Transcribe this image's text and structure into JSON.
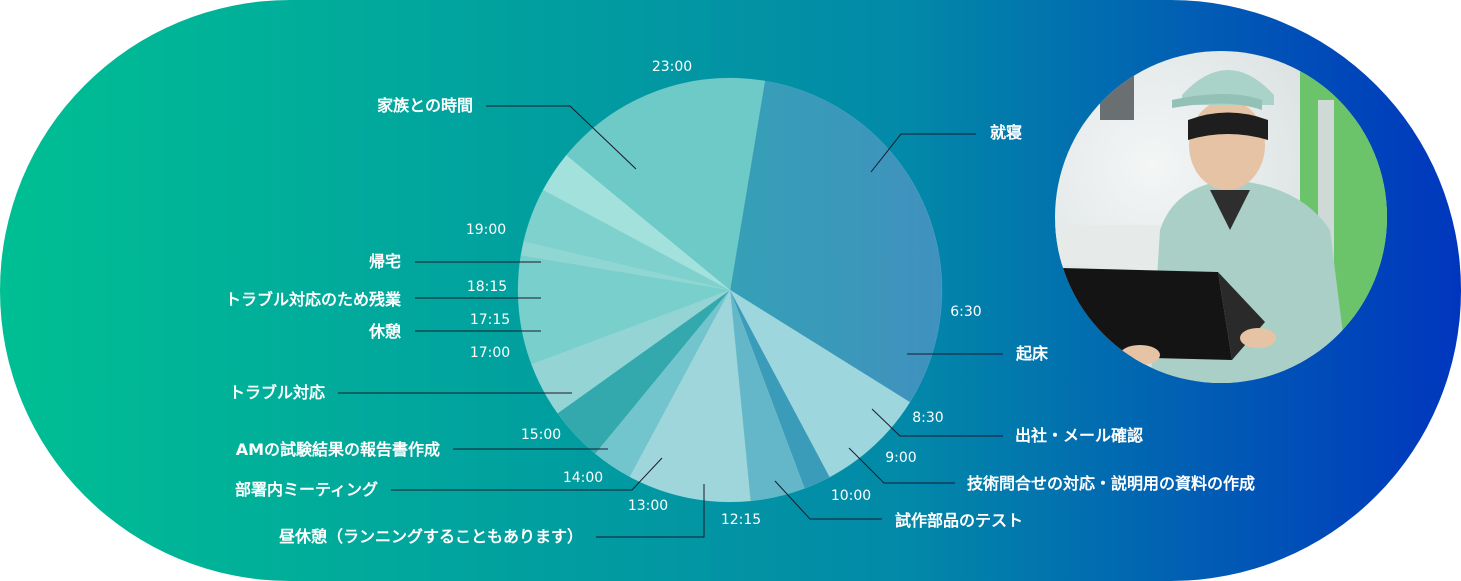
{
  "colors": {
    "bg_start": "#00bf93",
    "bg_mid": "#0289a8",
    "bg_end": "#0036be",
    "leader": "#1a1a2e"
  },
  "chart_data": {
    "type": "pie",
    "title": "",
    "unit": "hours",
    "start_hour": 23,
    "slices": [
      {
        "label": "就寝",
        "start": "23:00",
        "end": "6:30",
        "value": 7.5,
        "color": "#35a0b6",
        "color2": "#4091bf"
      },
      {
        "label": "起床",
        "start": "6:30",
        "end": "8:30",
        "value": 2.0,
        "color": "#9ed6de"
      },
      {
        "label": "出社・メール確認",
        "start": "8:30",
        "end": "9:00",
        "value": 0.5,
        "color": "#3b9cb9"
      },
      {
        "label": "技術問合せの対応・説明用の資料の作成",
        "start": "9:00",
        "end": "10:00",
        "value": 1.0,
        "color": "#63b7c8"
      },
      {
        "label": "試作部品のテスト",
        "start": "10:00",
        "end": "12:15",
        "value": 2.25,
        "color": "#9fd6dc"
      },
      {
        "label": "昼休憩（ランニングすることもあります）",
        "start": "12:15",
        "end": "13:00",
        "value": 0.75,
        "color": "#72c5cc"
      },
      {
        "label": "部署内ミーティング",
        "start": "13:00",
        "end": "14:00",
        "value": 1.0,
        "color": "#33a9ad"
      },
      {
        "label": "AMの試験結果の報告書作成",
        "start": "14:00",
        "end": "15:00",
        "value": 1.0,
        "color": "#95d4d4"
      },
      {
        "label": "トラブル対応",
        "start": "15:00",
        "end": "17:00",
        "value": 2.0,
        "color": "#79cfcc"
      },
      {
        "label": "休憩",
        "start": "17:00",
        "end": "17:15",
        "value": 0.25,
        "color": "#90d7d3"
      },
      {
        "label": "トラブル対応のため残業",
        "start": "17:15",
        "end": "18:15",
        "value": 1.0,
        "color": "#7fd1ce"
      },
      {
        "label": "帰宅",
        "start": "18:15",
        "end": "19:00",
        "value": 0.75,
        "color": "#a2e1dc"
      },
      {
        "label": "家族との時間",
        "start": "19:00",
        "end": "23:00",
        "value": 4.0,
        "color": "#6dcac6"
      }
    ],
    "tick_labels": [
      "23:00",
      "6:30",
      "8:30",
      "9:00",
      "10:00",
      "12:15",
      "13:00",
      "14:00",
      "15:00",
      "17:00",
      "17:15",
      "18:15",
      "19:00"
    ]
  },
  "photo": {
    "icon": "engineer-with-laptop-photo"
  }
}
